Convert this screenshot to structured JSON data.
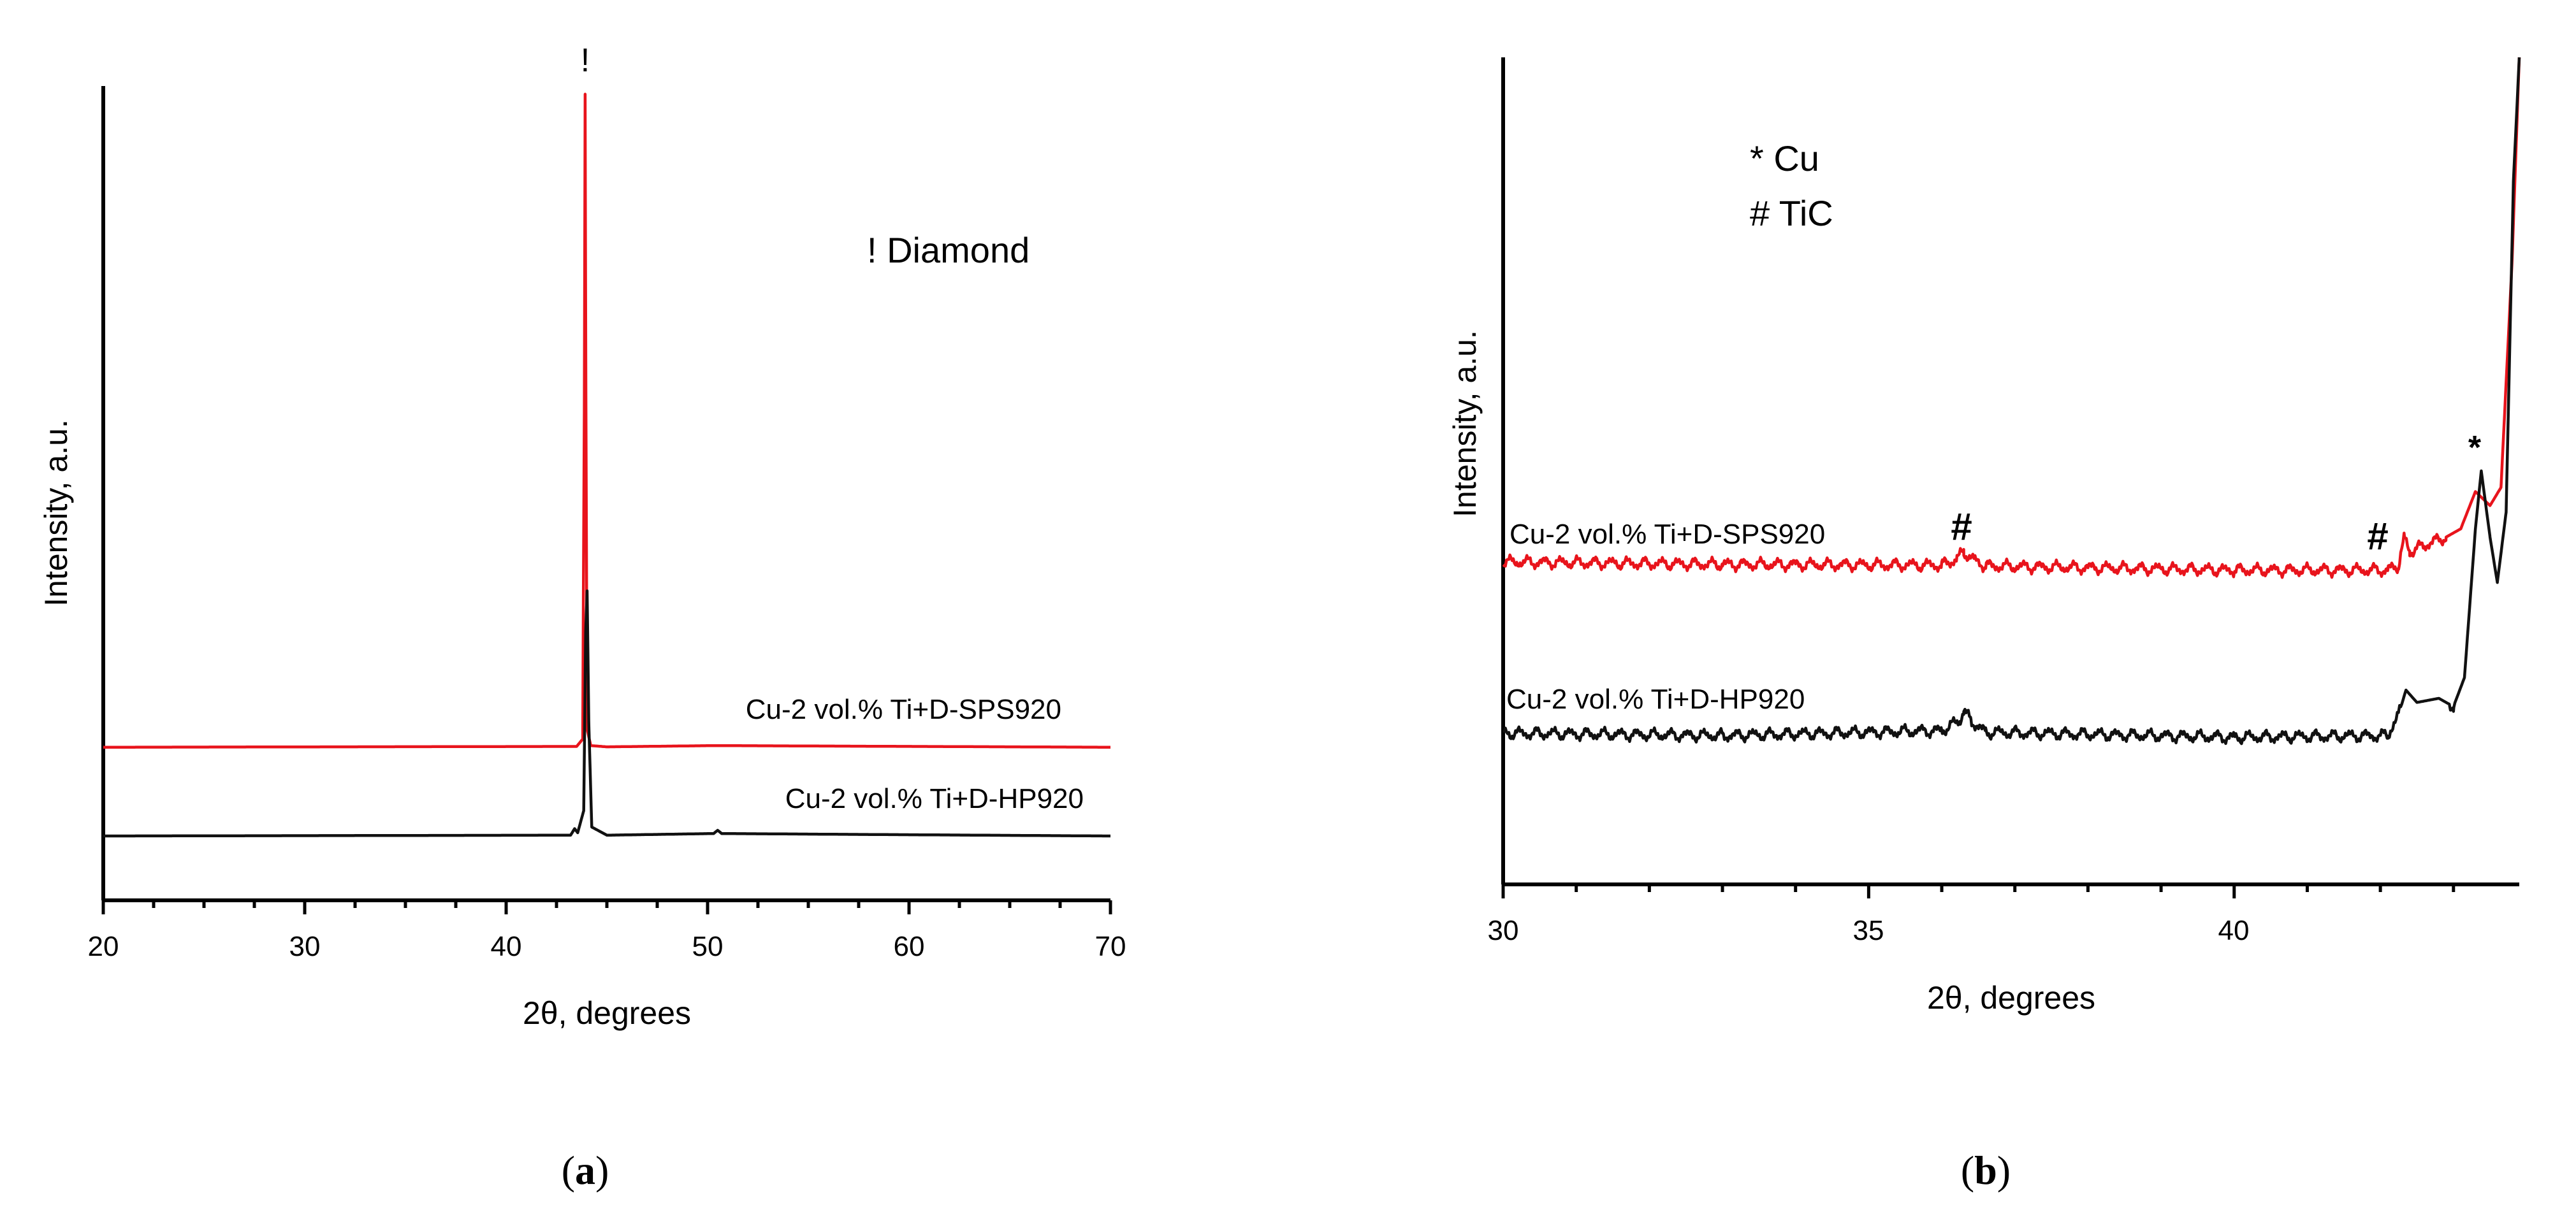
{
  "chart_data": [
    {
      "type": "line",
      "panel_label": "a",
      "xlabel": "2θ, degrees",
      "ylabel": "Intensity, a.u.",
      "xlim": [
        20,
        70
      ],
      "ylim": [
        0,
        100
      ],
      "x_ticks": [
        20,
        30,
        40,
        50,
        60,
        70
      ],
      "x_tick_labels": [
        "20",
        "30",
        "40",
        "50",
        "60",
        "70"
      ],
      "x_minor_step": 2.5,
      "y_ticks_shown": false,
      "grid": false,
      "legend": "none",
      "series": [
        {
          "label": "Cu-2 vol.% Ti+D-SPS920",
          "color": "#e8141c",
          "baseline": 18.8,
          "points": [
            [
              20,
              18.8
            ],
            [
              43.5,
              18.9
            ],
            [
              43.8,
              19.8
            ],
            [
              43.88,
              60
            ],
            [
              43.92,
              99
            ],
            [
              43.96,
              62
            ],
            [
              44.02,
              21
            ],
            [
              44.2,
              19.0
            ],
            [
              45,
              18.85
            ],
            [
              50.4,
              19.0
            ],
            [
              70,
              18.8
            ]
          ]
        },
        {
          "label": "Cu-2 vol.% Ti+D-HP920",
          "color": "#111111",
          "baseline": 7.9,
          "points": [
            [
              20,
              7.9
            ],
            [
              43.2,
              8.0
            ],
            [
              43.4,
              8.8
            ],
            [
              43.55,
              8.3
            ],
            [
              43.85,
              11
            ],
            [
              43.95,
              33
            ],
            [
              44.02,
              38
            ],
            [
              44.1,
              22
            ],
            [
              44.25,
              9.0
            ],
            [
              45,
              8.0
            ],
            [
              50.3,
              8.2
            ],
            [
              50.5,
              8.6
            ],
            [
              50.7,
              8.2
            ],
            [
              70,
              7.9
            ]
          ]
        }
      ],
      "annotations": [
        {
          "text": "!",
          "x": 43.92,
          "y": 103
        },
        {
          "text": "! Diamond",
          "x": 58,
          "y": 79
        }
      ]
    },
    {
      "type": "line",
      "panel_label": "b",
      "xlabel": "2θ, degrees",
      "ylabel": "Intensity, a.u.",
      "xlim": [
        30,
        43.9
      ],
      "ylim": [
        0,
        100
      ],
      "x_ticks": [
        30,
        35,
        40
      ],
      "x_tick_labels": [
        "30",
        "35",
        "40"
      ],
      "x_minor_step": 1,
      "y_ticks_shown": false,
      "grid": false,
      "legend": "none",
      "series": [
        {
          "label": "Cu-2 vol.% Ti+D-SPS920",
          "color": "#e8141c",
          "baseline": 38.5,
          "noise_amplitude": 0.9,
          "points": [
            [
              30,
              39.0
            ],
            [
              33,
              38.7
            ],
            [
              36,
              38.6
            ],
            [
              36.2,
              39.3
            ],
            [
              36.3,
              40.2
            ],
            [
              36.45,
              39.2
            ],
            [
              36.6,
              38.5
            ],
            [
              40,
              38.0
            ],
            [
              42.1,
              38.0
            ],
            [
              42.25,
              38.6
            ],
            [
              42.33,
              42.0
            ],
            [
              42.4,
              40.2
            ],
            [
              42.6,
              41.0
            ],
            [
              42.9,
              42.0
            ],
            [
              43.1,
              43.0
            ],
            [
              43.3,
              47.5
            ],
            [
              43.5,
              45.8
            ],
            [
              43.65,
              48.0
            ],
            [
              43.8,
              75
            ],
            [
              43.9,
              100
            ]
          ]
        },
        {
          "label": "Cu-2 vol.% Ti+D-HP920",
          "color": "#111111",
          "baseline": 18.3,
          "noise_amplitude": 0.9,
          "points": [
            [
              30,
              18.3
            ],
            [
              33,
              18.0
            ],
            [
              36,
              18.6
            ],
            [
              36.25,
              19.8
            ],
            [
              36.3,
              21.0
            ],
            [
              36.4,
              19.8
            ],
            [
              36.6,
              18.4
            ],
            [
              40,
              17.8
            ],
            [
              42.1,
              18.0
            ],
            [
              42.25,
              20.5
            ],
            [
              42.35,
              23.5
            ],
            [
              42.5,
              22.0
            ],
            [
              42.8,
              22.5
            ],
            [
              43.0,
              21.5
            ],
            [
              43.15,
              25.0
            ],
            [
              43.3,
              43.0
            ],
            [
              43.38,
              50.0
            ],
            [
              43.5,
              42.0
            ],
            [
              43.6,
              36.5
            ],
            [
              43.72,
              45.0
            ],
            [
              43.82,
              85
            ],
            [
              43.9,
              100
            ]
          ]
        }
      ],
      "annotations": [
        {
          "text": "* Cu",
          "x": 33.4,
          "y": 88
        },
        {
          "text": "# TiC",
          "x": 33.4,
          "y": 81.5
        },
        {
          "text": "#",
          "x": 36.3,
          "y": 42.5
        },
        {
          "text": "#",
          "x": 41.95,
          "y": 41.5
        },
        {
          "text": "*",
          "x": 43.3,
          "y": 53.5
        }
      ]
    }
  ]
}
